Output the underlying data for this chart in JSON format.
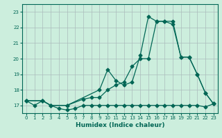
{
  "xlabel": "Humidex (Indice chaleur)",
  "background_color": "#cceedd",
  "grid_color": "#aabbbb",
  "line_color": "#006655",
  "xlim": [
    -0.5,
    23.5
  ],
  "ylim": [
    16.5,
    23.5
  ],
  "yticks": [
    17,
    18,
    19,
    20,
    21,
    22,
    23
  ],
  "xticks": [
    0,
    1,
    2,
    3,
    4,
    5,
    6,
    7,
    8,
    9,
    10,
    11,
    12,
    13,
    14,
    15,
    16,
    17,
    18,
    19,
    20,
    21,
    22,
    23
  ],
  "line1_x": [
    0,
    1,
    2,
    3,
    4,
    5,
    6,
    7,
    8,
    9,
    10,
    11,
    12,
    13,
    14,
    15,
    16,
    17,
    18,
    19,
    20,
    21,
    22,
    23
  ],
  "line1_y": [
    17.3,
    17.0,
    17.3,
    17.0,
    16.8,
    16.7,
    16.8,
    17.0,
    17.0,
    17.0,
    17.0,
    17.0,
    17.0,
    17.0,
    17.0,
    17.0,
    17.0,
    17.0,
    17.0,
    17.0,
    17.0,
    17.0,
    16.9,
    17.1
  ],
  "line2_x": [
    0,
    2,
    3,
    5,
    9,
    10,
    11,
    12,
    13,
    14,
    15,
    16,
    17,
    18,
    19,
    20,
    21,
    22,
    23
  ],
  "line2_y": [
    17.3,
    17.3,
    17.0,
    17.0,
    18.0,
    19.3,
    18.6,
    18.3,
    18.5,
    20.2,
    22.7,
    22.4,
    22.4,
    22.2,
    20.1,
    20.1,
    19.0,
    17.8,
    17.1
  ],
  "line3_x": [
    0,
    2,
    3,
    5,
    7,
    8,
    9,
    10,
    11,
    12,
    13,
    14,
    15,
    16,
    17,
    18,
    19,
    20,
    21,
    22,
    23
  ],
  "line3_y": [
    17.3,
    17.3,
    17.0,
    17.0,
    17.4,
    17.5,
    17.5,
    18.0,
    18.3,
    18.5,
    19.5,
    20.0,
    20.0,
    22.4,
    22.4,
    22.4,
    20.1,
    20.1,
    19.0,
    17.8,
    17.1
  ]
}
